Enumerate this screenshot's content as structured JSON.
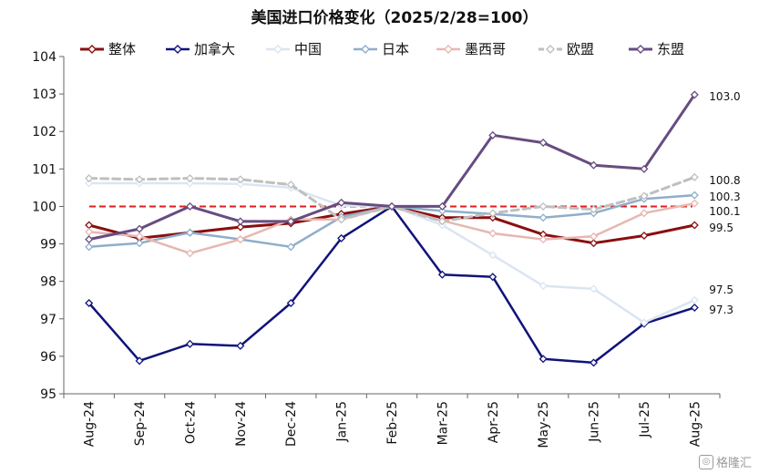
{
  "chart_data": {
    "type": "line",
    "title": "美国进口价格变化（2025/2/28=100）",
    "xlabel": "",
    "ylabel": "",
    "ylim": [
      95,
      104
    ],
    "yticks": [
      95,
      96,
      97,
      98,
      99,
      100,
      101,
      102,
      103,
      104
    ],
    "categories": [
      "Aug-24",
      "Sep-24",
      "Oct-24",
      "Nov-24",
      "Dec-24",
      "Jan-25",
      "Feb-25",
      "Mar-25",
      "Apr-25",
      "May-25",
      "Jun-25",
      "Jul-25",
      "Aug-25"
    ],
    "grid": false,
    "legend_position": "top",
    "reference_line": {
      "value": 100,
      "color": "#e01e1e",
      "style": "dashed"
    },
    "series": [
      {
        "name": "整体",
        "color": "#8b0e0e",
        "dash": "solid",
        "width": 3,
        "values": [
          99.5,
          99.15,
          99.3,
          99.45,
          99.55,
          99.8,
          100.0,
          99.7,
          99.7,
          99.25,
          99.02,
          99.22,
          99.5
        ]
      },
      {
        "name": "加拿大",
        "color": "#10137a",
        "dash": "solid",
        "width": 2.5,
        "values": [
          97.42,
          95.88,
          96.33,
          96.28,
          97.42,
          99.15,
          100.0,
          98.18,
          98.12,
          95.93,
          95.83,
          96.87,
          97.3
        ]
      },
      {
        "name": "中国",
        "color": "#dbe5f1",
        "dash": "solid",
        "width": 2.5,
        "values": [
          100.62,
          100.62,
          100.62,
          100.6,
          100.5,
          100.02,
          100.0,
          99.5,
          98.7,
          97.88,
          97.8,
          96.9,
          97.5
        ]
      },
      {
        "name": "日本",
        "color": "#8eaecb",
        "dash": "solid",
        "width": 2.5,
        "values": [
          98.92,
          99.02,
          99.3,
          99.12,
          98.92,
          99.72,
          100.0,
          99.88,
          99.8,
          99.7,
          99.82,
          100.2,
          100.3
        ]
      },
      {
        "name": "墨西哥",
        "color": "#e7b7b1",
        "dash": "solid",
        "width": 2.5,
        "values": [
          99.32,
          99.2,
          98.75,
          99.12,
          99.65,
          99.65,
          100.0,
          99.62,
          99.28,
          99.12,
          99.2,
          99.82,
          100.08
        ]
      },
      {
        "name": "欧盟",
        "color": "#bfbfbf",
        "dash": "dashed",
        "width": 3,
        "values": [
          100.75,
          100.72,
          100.75,
          100.72,
          100.58,
          99.65,
          100.0,
          99.6,
          99.82,
          100.0,
          99.92,
          100.28,
          100.78
        ]
      },
      {
        "name": "东盟",
        "color": "#674c80",
        "dash": "solid",
        "width": 3,
        "values": [
          99.12,
          99.4,
          100.0,
          99.6,
          99.6,
          100.1,
          100.0,
          100.0,
          101.9,
          101.7,
          101.1,
          101.0,
          102.98
        ]
      }
    ],
    "end_labels": [
      {
        "text": "103.0",
        "series": "东盟"
      },
      {
        "text": "100.8",
        "series": "欧盟"
      },
      {
        "text": "100.3",
        "series": "日本"
      },
      {
        "text": "100.1",
        "series": "墨西哥"
      },
      {
        "text": "99.5",
        "series": "整体"
      },
      {
        "text": "97.5",
        "series": "中国"
      },
      {
        "text": "97.3",
        "series": "加拿大"
      }
    ]
  },
  "watermark": {
    "text": "格隆汇",
    "icon": "gelonghui-logo-icon"
  }
}
